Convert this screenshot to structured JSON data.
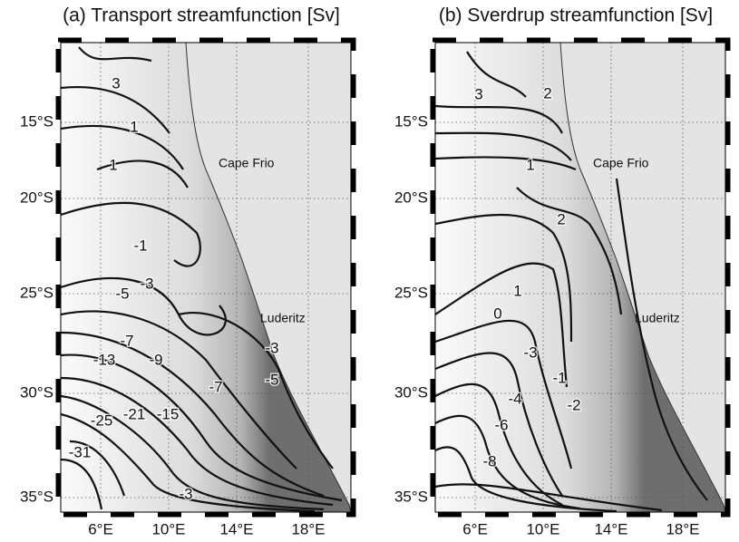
{
  "panels": [
    {
      "title": "(a) Transport streamfunction [Sv]",
      "yticks": [
        "15°S",
        "20°S",
        "25°S",
        "30°S",
        "35°S"
      ],
      "xticks": [
        "6°E",
        "10°E",
        "14°E",
        "18°E"
      ],
      "places": [
        "Cape Frio",
        "Luderitz"
      ],
      "contour_labels": [
        "3",
        "1",
        "1",
        "-1",
        "-3",
        "-5",
        "-7",
        "-9",
        "-13",
        "-15",
        "-21",
        "-25",
        "-31",
        "-7",
        "-5",
        "-3",
        "-3"
      ]
    },
    {
      "title": "(b) Sverdrup streamfunction [Sv]",
      "yticks": [
        "15°S",
        "20°S",
        "25°S",
        "30°S",
        "35°S"
      ],
      "xticks": [
        "6°E",
        "10°E",
        "14°E",
        "18°E"
      ],
      "places": [
        "Cape Frio",
        "Luderitz"
      ],
      "contour_labels": [
        "3",
        "2",
        "1",
        "2",
        "1",
        "0",
        "-1",
        "-2",
        "-3",
        "-4",
        "-6",
        "-8"
      ]
    }
  ]
}
